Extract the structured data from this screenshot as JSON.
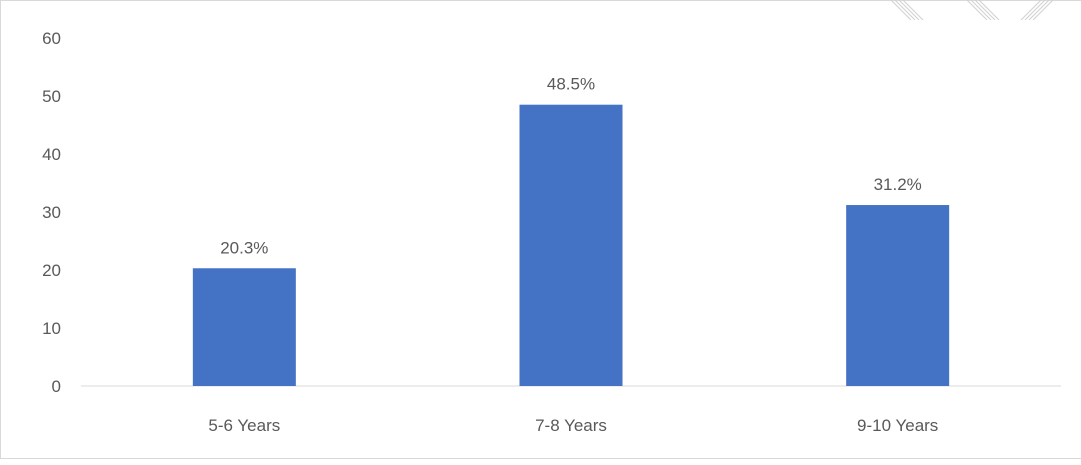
{
  "chart_data": {
    "type": "bar",
    "categories": [
      "5-6 Years",
      "7-8 Years",
      "9-10 Years"
    ],
    "values": [
      20.3,
      48.5,
      31.2
    ],
    "data_labels": [
      "20.3%",
      "48.5%",
      "31.2%"
    ],
    "y_ticks": [
      0,
      10,
      20,
      30,
      40,
      50,
      60
    ],
    "ylim": [
      0,
      60
    ],
    "title": "",
    "xlabel": "",
    "ylabel": "",
    "grid": false,
    "legend": "none",
    "bar_color": "#4472c4",
    "axis_color": "#d9d9d9",
    "text_color": "#595959"
  }
}
